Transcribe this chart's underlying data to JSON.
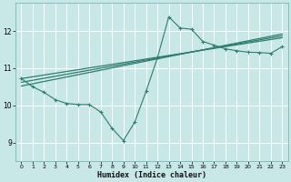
{
  "xlabel": "Humidex (Indice chaleur)",
  "bg_color": "#c8e8e8",
  "grid_color": "#b0d8d8",
  "line_color": "#2e7d6e",
  "xlim": [
    -0.5,
    23.5
  ],
  "ylim": [
    8.5,
    12.75
  ],
  "xticks": [
    0,
    1,
    2,
    3,
    4,
    5,
    6,
    7,
    8,
    9,
    10,
    11,
    12,
    13,
    14,
    15,
    16,
    17,
    18,
    19,
    20,
    21,
    22,
    23
  ],
  "yticks": [
    9,
    10,
    11,
    12
  ],
  "trend_lines": [
    {
      "x0": 0,
      "y0": 10.72,
      "x1": 23,
      "y1": 11.82
    },
    {
      "x0": 0,
      "y0": 10.62,
      "x1": 23,
      "y1": 11.87
    },
    {
      "x0": 0,
      "y0": 10.52,
      "x1": 23,
      "y1": 11.92
    }
  ],
  "curve_x": [
    0,
    1,
    2,
    3,
    4,
    5,
    6,
    7,
    8,
    9,
    10,
    11,
    12,
    13,
    14,
    15,
    16,
    17,
    18,
    19,
    20,
    21,
    22,
    23
  ],
  "curve_y": [
    10.72,
    10.5,
    10.35,
    10.15,
    10.05,
    10.02,
    10.02,
    9.82,
    9.38,
    9.05,
    9.55,
    10.38,
    11.28,
    12.38,
    12.08,
    12.05,
    11.72,
    11.62,
    11.52,
    11.47,
    11.43,
    11.42,
    11.4,
    11.58
  ]
}
